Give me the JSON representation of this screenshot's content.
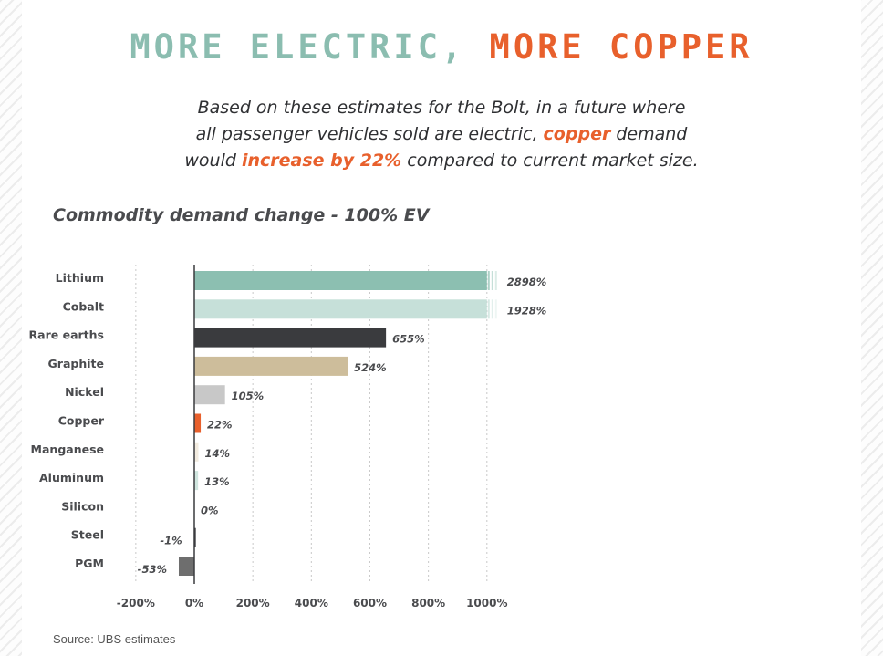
{
  "header": {
    "title_part1": "MORE ELECTRIC,",
    "title_part2": "MORE COPPER",
    "sub1": "Based on these estimates for the Bolt, in a future where",
    "sub2a": "all passenger vehicles sold are electric, ",
    "sub2b": "copper",
    "sub2c": " demand",
    "sub3a": "would ",
    "sub3b": "increase by 22%",
    "sub3c": " compared to current market size."
  },
  "chart_heading": "Commodity demand change - 100% EV",
  "source": "Source: UBS estimates",
  "colors": {
    "accent_teal": "#8bbdb0",
    "accent_orange": "#e8602c"
  },
  "chart_data": {
    "type": "bar",
    "orientation": "horizontal",
    "categories": [
      "Lithium",
      "Cobalt",
      "Rare earths",
      "Graphite",
      "Nickel",
      "Copper",
      "Manganese",
      "Aluminum",
      "Silicon",
      "Steel",
      "PGM"
    ],
    "values": [
      2898,
      1928,
      655,
      524,
      105,
      22,
      14,
      13,
      0,
      -1,
      -53
    ],
    "value_labels": [
      "2898%",
      "1928%",
      "655%",
      "524%",
      "105%",
      "22%",
      "14%",
      "13%",
      "0%",
      "-1%",
      "-53%"
    ],
    "bar_colors": [
      "#8cbfb1",
      "#c6e0d9",
      "#3a3b3e",
      "#cdbd9b",
      "#c8c8c8",
      "#e8602c",
      "#f2ebdf",
      "#cfe5de",
      "#cfe5de",
      "#3a3b3e",
      "#6e6e6e"
    ],
    "highlight_category": "Copper",
    "axis_truncated_at": 1000,
    "xlim": [
      -200,
      1000
    ],
    "xticks": [
      -200,
      0,
      200,
      400,
      600,
      800,
      1000
    ],
    "xtick_labels": [
      "-200%",
      "0%",
      "200%",
      "400%",
      "600%",
      "800%",
      "1000%"
    ],
    "grid": "vertical dotted",
    "legend": "none"
  }
}
